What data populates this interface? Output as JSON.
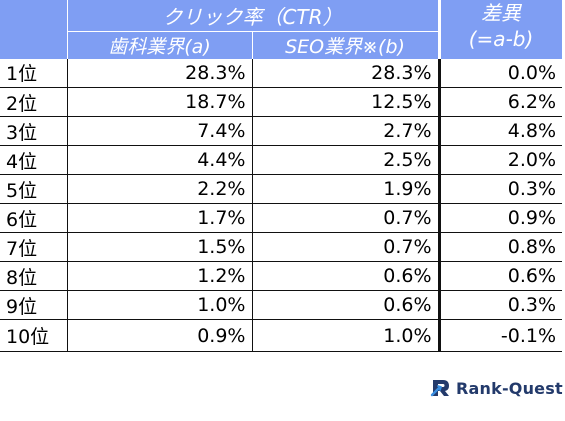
{
  "table": {
    "header": {
      "ctr_title": "クリック率（CTR）",
      "diff_title_line1": "差異",
      "diff_title_line2": "(=a-b)",
      "col_a": "歯科業界(a)",
      "col_b": "SEO業界※(b)"
    },
    "rows": [
      {
        "rank": "1位",
        "a": "28.3%",
        "b": "28.3%",
        "diff": "0.0%"
      },
      {
        "rank": "2位",
        "a": "18.7%",
        "b": "12.5%",
        "diff": "6.2%"
      },
      {
        "rank": "3位",
        "a": "7.4%",
        "b": "2.7%",
        "diff": "4.8%"
      },
      {
        "rank": "4位",
        "a": "4.4%",
        "b": "2.5%",
        "diff": "2.0%"
      },
      {
        "rank": "5位",
        "a": "2.2%",
        "b": "1.9%",
        "diff": "0.3%"
      },
      {
        "rank": "6位",
        "a": "1.7%",
        "b": "0.7%",
        "diff": "0.9%"
      },
      {
        "rank": "7位",
        "a": "1.5%",
        "b": "0.7%",
        "diff": "0.8%"
      },
      {
        "rank": "8位",
        "a": "1.2%",
        "b": "0.6%",
        "diff": "0.6%"
      },
      {
        "rank": "9位",
        "a": "1.0%",
        "b": "0.6%",
        "diff": "0.3%"
      },
      {
        "rank": "10位",
        "a": "0.9%",
        "b": "1.0%",
        "diff": "-0.1%"
      }
    ]
  },
  "logo": {
    "text": "Rank-Quest",
    "icon": "rank-quest-logo-icon"
  },
  "colors": {
    "header_bg": "#7f9ef3",
    "header_text": "#ffffff",
    "logo_text": "#233a6b"
  }
}
